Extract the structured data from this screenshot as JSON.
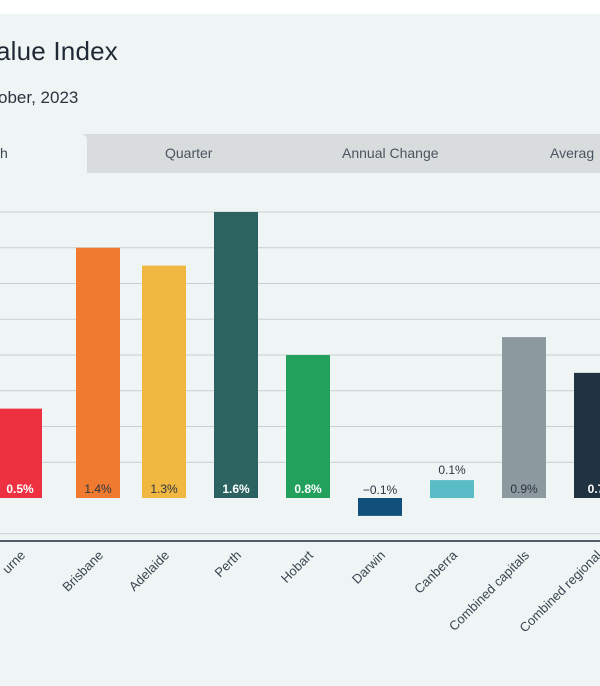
{
  "header": {
    "title": "alue Index",
    "subtitle": "ober, 2023"
  },
  "tabs": [
    {
      "label": "h",
      "active": true
    },
    {
      "label": "Quarter",
      "active": false
    },
    {
      "label": "Annual Change",
      "active": false
    },
    {
      "label": "Averag",
      "active": false
    }
  ],
  "chart_data": {
    "type": "bar",
    "title": "",
    "xlabel": "",
    "ylabel": "",
    "grid": true,
    "ylim": [
      -0.4,
      1.6
    ],
    "categories": [
      "urne",
      "Brisbane",
      "Adelaide",
      "Perth",
      "Hobart",
      "Darwin",
      "Canberra",
      "Combined capitals",
      "Combined regional"
    ],
    "values": [
      0.5,
      1.4,
      1.3,
      1.6,
      0.8,
      -0.1,
      0.1,
      0.9,
      0.7
    ],
    "labels": [
      "0.5%",
      "1.4%",
      "1.3%",
      "1.6%",
      "0.8%",
      "−0.1%",
      "0.1%",
      "0.9%",
      "0.7"
    ],
    "colors": [
      "#ee3140",
      "#ef7a30",
      "#f0b841",
      "#2c6360",
      "#22a15d",
      "#10507a",
      "#59bcc6",
      "#8c999e",
      "#213241"
    ],
    "label_colors": [
      "#ffffff",
      "#2b3440",
      "#2b3440",
      "#ffffff",
      "#ffffff",
      "#2b3440",
      "#2b3440",
      "#2b3440",
      "#ffffff"
    ]
  }
}
